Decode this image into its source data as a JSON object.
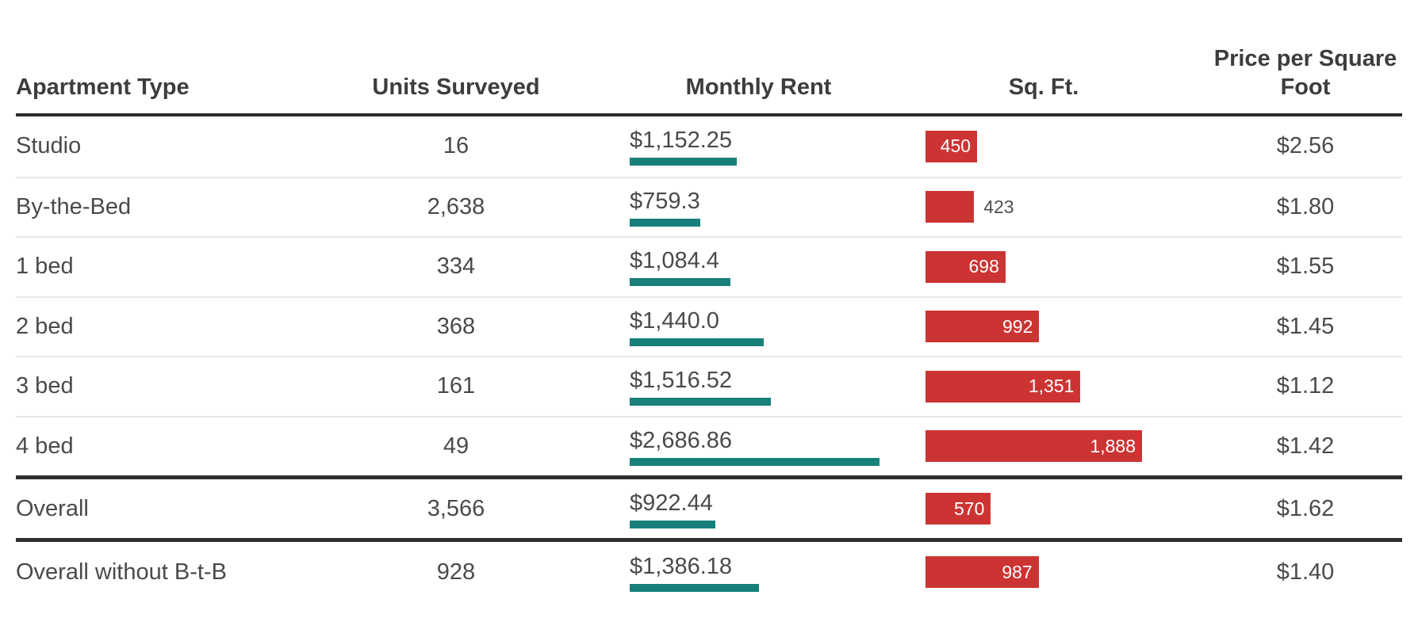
{
  "colors": {
    "rent_bar_teal": "#17807b",
    "sqft_bar_red": "#cc3433",
    "header_text": "#3d3d3d",
    "row_text": "#4a4a4a",
    "thick_rule": "#2f2f2f",
    "thin_rule": "#e7e7e7"
  },
  "table": {
    "columns": [
      "Apartment Type",
      "Units Surveyed",
      "Monthly Rent",
      "Sq. Ft.",
      "Price per Square Foot"
    ],
    "rows": [
      {
        "type": "Studio",
        "units": "16",
        "rent_label": "$1,152.25",
        "rent": 1152.25,
        "sqft": 450,
        "sqft_label": "450",
        "price": "$2.56",
        "section": "normal"
      },
      {
        "type": "By-the-Bed",
        "units": "2,638",
        "rent_label": "$759.3",
        "rent": 759.3,
        "sqft": 423,
        "sqft_label": "423",
        "price": "$1.80",
        "section": "normal"
      },
      {
        "type": "1 bed",
        "units": "334",
        "rent_label": "$1,084.4",
        "rent": 1084.4,
        "sqft": 698,
        "sqft_label": "698",
        "price": "$1.55",
        "section": "normal"
      },
      {
        "type": "2 bed",
        "units": "368",
        "rent_label": "$1,440.0",
        "rent": 1440.0,
        "sqft": 992,
        "sqft_label": "992",
        "price": "$1.45",
        "section": "normal"
      },
      {
        "type": "3 bed",
        "units": "161",
        "rent_label": "$1,516.52",
        "rent": 1516.52,
        "sqft": 1351,
        "sqft_label": "1,351",
        "price": "$1.12",
        "section": "normal"
      },
      {
        "type": "4 bed",
        "units": "49",
        "rent_label": "$2,686.86",
        "rent": 2686.86,
        "sqft": 1888,
        "sqft_label": "1,888",
        "price": "$1.42",
        "section": "normal"
      },
      {
        "type": "Overall",
        "units": "3,566",
        "rent_label": "$922.44",
        "rent": 922.44,
        "sqft": 570,
        "sqft_label": "570",
        "price": "$1.62",
        "section": "summary"
      },
      {
        "type": "Overall without B-t-B",
        "units": "928",
        "rent_label": "$1,386.18",
        "rent": 1386.18,
        "sqft": 987,
        "sqft_label": "987",
        "price": "$1.40",
        "section": "summary"
      }
    ]
  },
  "chart_data": {
    "type": "table",
    "title": "",
    "columns": [
      "Apartment Type",
      "Units Surveyed",
      "Monthly Rent",
      "Sq. Ft.",
      "Price per Square Foot"
    ],
    "embedded_bars": [
      {
        "column": "Monthly Rent",
        "style": "thin bar under value",
        "color": "#17807b",
        "scale_max": 2686.86
      },
      {
        "column": "Sq. Ft.",
        "style": "filled bar with value label",
        "color": "#cc3433",
        "scale_max": 1888
      }
    ],
    "categories": [
      "Studio",
      "By-the-Bed",
      "1 bed",
      "2 bed",
      "3 bed",
      "4 bed",
      "Overall",
      "Overall without B-t-B"
    ],
    "series": [
      {
        "name": "Units Surveyed",
        "values": [
          16,
          2638,
          334,
          368,
          161,
          49,
          3566,
          928
        ]
      },
      {
        "name": "Monthly Rent",
        "values": [
          1152.25,
          759.3,
          1084.4,
          1440.0,
          1516.52,
          2686.86,
          922.44,
          1386.18
        ]
      },
      {
        "name": "Sq. Ft.",
        "values": [
          450,
          423,
          698,
          992,
          1351,
          1888,
          570,
          987
        ]
      },
      {
        "name": "Price per Square Foot",
        "values": [
          2.56,
          1.8,
          1.55,
          1.45,
          1.12,
          1.42,
          1.62,
          1.4
        ]
      }
    ],
    "summary_rows": [
      "Overall",
      "Overall without B-t-B"
    ],
    "grid": "horizontal separators only, heavy rules above summary rows",
    "legend": "none"
  }
}
